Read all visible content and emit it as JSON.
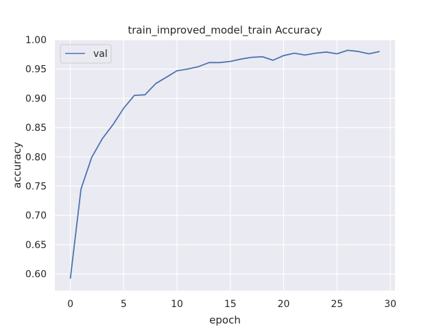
{
  "chart_data": {
    "type": "line",
    "title": "train_improved_model_train Accuracy",
    "xlabel": "epoch",
    "ylabel": "accuracy",
    "xlim": [
      -1.45,
      30.45
    ],
    "ylim": [
      0.5715,
      1.0
    ],
    "xticks": [
      0,
      5,
      10,
      15,
      20,
      25,
      30
    ],
    "xtick_labels": [
      "0",
      "5",
      "10",
      "15",
      "20",
      "25",
      "30"
    ],
    "yticks": [
      0.6,
      0.65,
      0.7,
      0.75,
      0.8,
      0.85,
      0.9,
      0.95,
      1.0
    ],
    "ytick_labels": [
      "0.60",
      "0.65",
      "0.70",
      "0.75",
      "0.80",
      "0.85",
      "0.90",
      "0.95",
      "1.00"
    ],
    "grid": true,
    "legend_position": "upper-left",
    "background_color": "#eaeaf2",
    "grid_color": "#ffffff",
    "series": [
      {
        "name": "val",
        "color": "#4c72b0",
        "x": [
          0,
          1,
          2,
          3,
          4,
          5,
          6,
          7,
          8,
          9,
          10,
          11,
          12,
          13,
          14,
          15,
          16,
          17,
          18,
          19,
          20,
          21,
          22,
          23,
          24,
          25,
          26,
          27,
          28,
          29
        ],
        "y": [
          0.592,
          0.745,
          0.799,
          0.831,
          0.855,
          0.883,
          0.905,
          0.906,
          0.925,
          0.936,
          0.947,
          0.95,
          0.954,
          0.961,
          0.961,
          0.963,
          0.967,
          0.97,
          0.971,
          0.965,
          0.973,
          0.977,
          0.974,
          0.977,
          0.979,
          0.976,
          0.982,
          0.98,
          0.976,
          0.98
        ]
      }
    ]
  }
}
